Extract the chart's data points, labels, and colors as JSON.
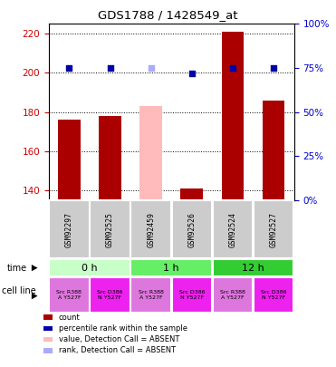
{
  "title": "GDS1788 / 1428549_at",
  "samples": [
    "GSM92297",
    "GSM92525",
    "GSM92459",
    "GSM92526",
    "GSM92524",
    "GSM92527"
  ],
  "bar_values": [
    176,
    178,
    183,
    141,
    221,
    186
  ],
  "bar_absent": [
    false,
    false,
    true,
    false,
    false,
    false
  ],
  "rank_values": [
    75,
    75,
    75,
    72,
    75,
    75
  ],
  "rank_absent_flags": [
    false,
    false,
    true,
    false,
    false,
    false
  ],
  "ylim_left": [
    135,
    225
  ],
  "ylim_right": [
    0,
    100
  ],
  "yticks_left": [
    140,
    160,
    180,
    200,
    220
  ],
  "yticks_right": [
    0,
    25,
    50,
    75,
    100
  ],
  "time_groups": [
    {
      "label": "0 h",
      "cols": [
        0,
        1
      ],
      "color": "#c8ffc8"
    },
    {
      "label": "1 h",
      "cols": [
        2,
        3
      ],
      "color": "#66ee66"
    },
    {
      "label": "12 h",
      "cols": [
        4,
        5
      ],
      "color": "#33cc33"
    }
  ],
  "cell_lines": [
    {
      "label": "Src R388\nA Y527F",
      "color": "#dd77dd"
    },
    {
      "label": "Src D386\nN Y527F",
      "color": "#ee22ee"
    },
    {
      "label": "Src R388\nA Y527F",
      "color": "#dd77dd"
    },
    {
      "label": "Src D386\nN Y527F",
      "color": "#ee22ee"
    },
    {
      "label": "Src R388\nA Y527F",
      "color": "#dd77dd"
    },
    {
      "label": "Src D386\nN Y527F",
      "color": "#ee22ee"
    }
  ],
  "bar_color_present": "#aa0000",
  "bar_color_absent": "#ffbbbb",
  "rank_color_present": "#0000aa",
  "rank_color_absent": "#aaaaff",
  "grid_color": "#888888",
  "ylabel_color_left": "#cc0000",
  "ylabel_color_right": "#0000cc",
  "bar_width": 0.55,
  "sample_box_color": "#cccccc",
  "legend_items": [
    {
      "color": "#aa0000",
      "label": "count"
    },
    {
      "color": "#0000aa",
      "label": "percentile rank within the sample"
    },
    {
      "color": "#ffbbbb",
      "label": "value, Detection Call = ABSENT"
    },
    {
      "color": "#aaaaff",
      "label": "rank, Detection Call = ABSENT"
    }
  ]
}
